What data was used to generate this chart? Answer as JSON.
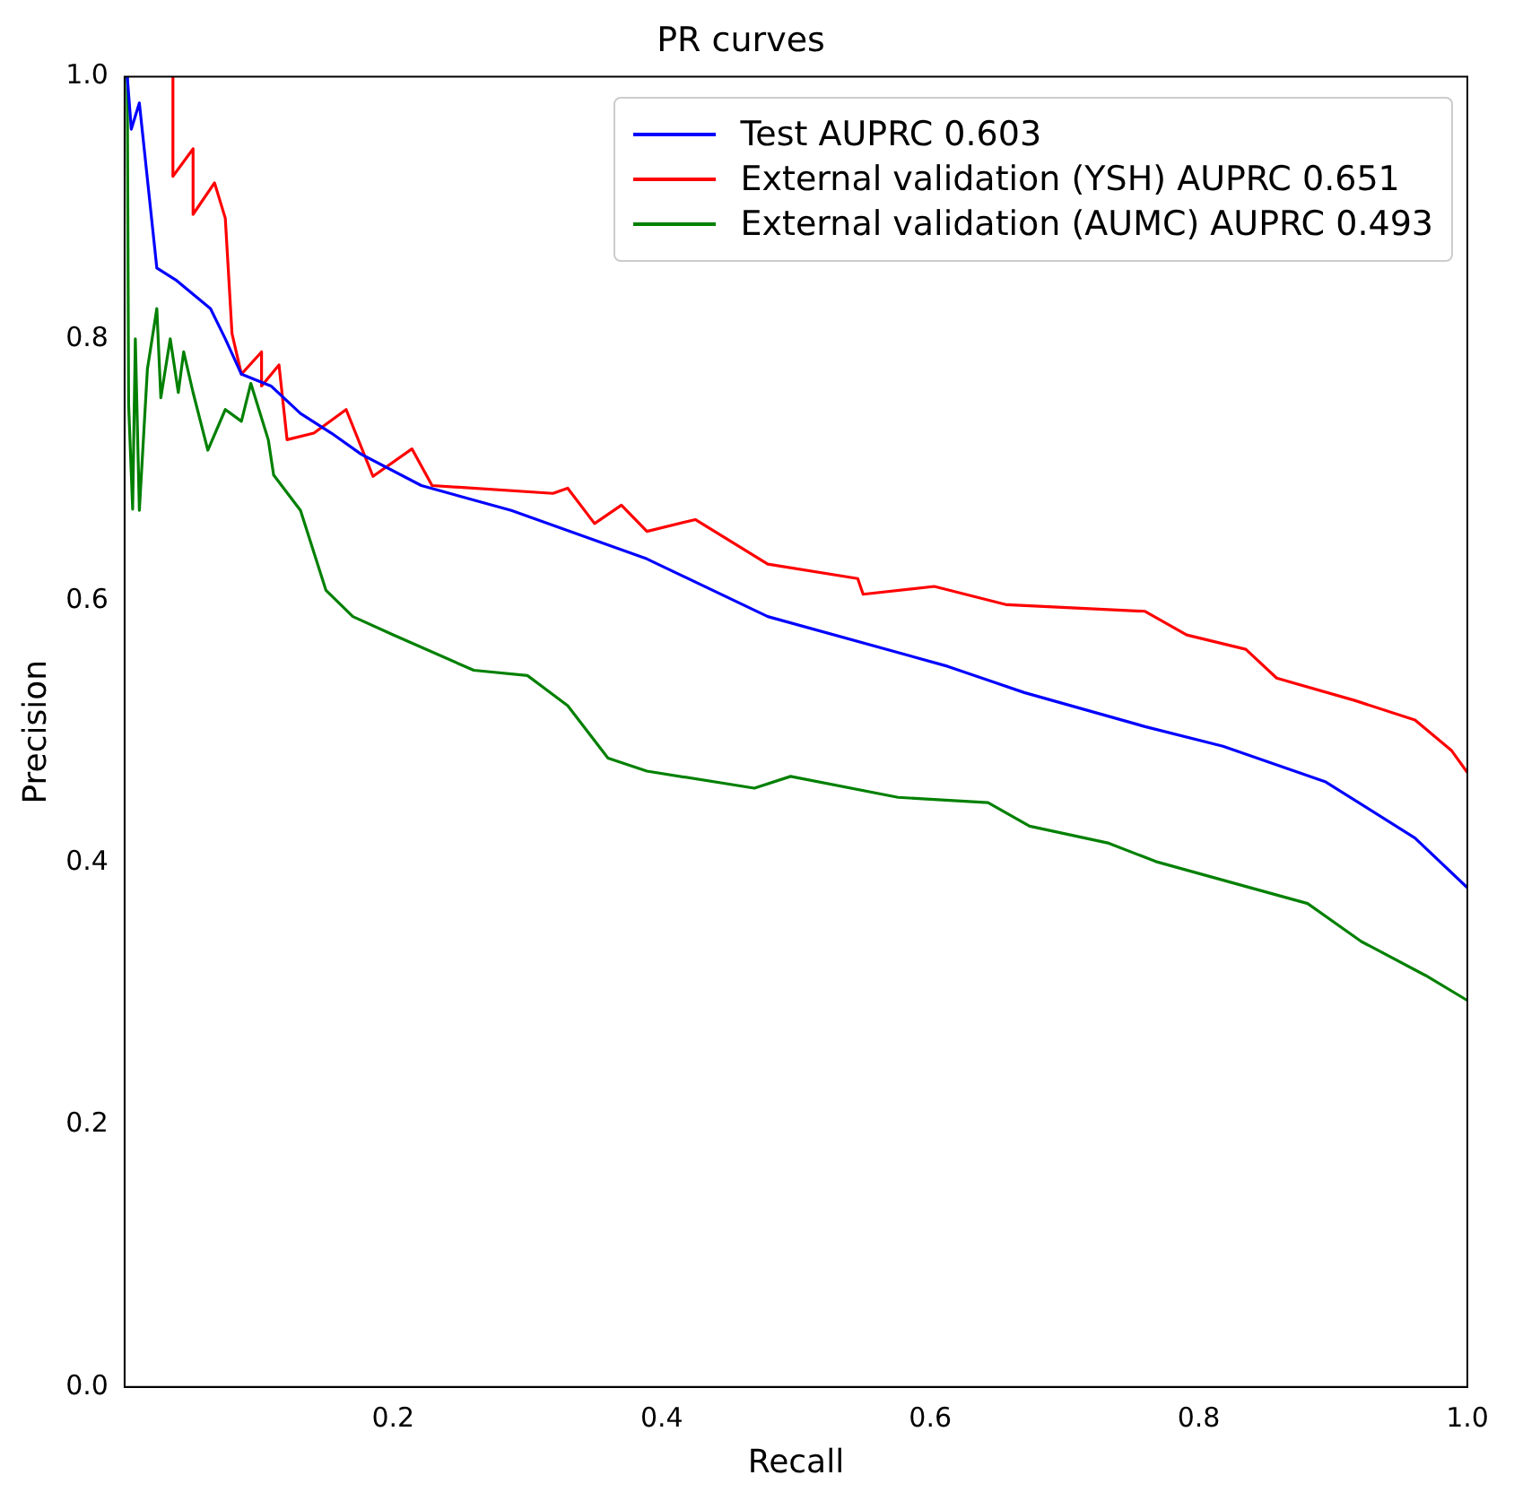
{
  "chart_data": {
    "type": "line",
    "title": "PR curves",
    "xlabel": "Recall",
    "ylabel": "Precision",
    "xlim": [
      0,
      1
    ],
    "ylim": [
      0,
      1
    ],
    "xticks": [
      0.2,
      0.4,
      0.6,
      0.8,
      {
        "value": 1,
        "label": "1.0"
      }
    ],
    "yticks": [
      {
        "value": 0,
        "label": "0.0"
      },
      0.2,
      0.4,
      0.6,
      0.8,
      {
        "value": 1,
        "label": "1.0"
      }
    ],
    "grid": false,
    "legend": "top right",
    "marker": "none",
    "line_style": "solid",
    "series": [
      {
        "name": "Test AUPRC 0.603",
        "color": "#0000ff",
        "x": [
          0.002,
          0.005,
          0.011,
          0.024,
          0.038,
          0.064,
          0.075,
          0.087,
          0.109,
          0.131,
          0.154,
          0.176,
          0.221,
          0.288,
          0.389,
          0.479,
          0.613,
          0.67,
          0.76,
          0.818,
          0.894,
          0.961,
          1.0
        ],
        "values": [
          1.0,
          0.96,
          0.98,
          0.854,
          0.845,
          0.823,
          0.8,
          0.773,
          0.764,
          0.743,
          0.728,
          0.712,
          0.688,
          0.669,
          0.632,
          0.588,
          0.55,
          0.53,
          0.504,
          0.489,
          0.462,
          0.419,
          0.381
        ]
      },
      {
        "name": "External validation (YSH) AUPRC 0.651",
        "color": "#ff0000",
        "x": [
          0.036,
          0.036,
          0.051,
          0.051,
          0.067,
          0.075,
          0.08,
          0.087,
          0.102,
          0.102,
          0.115,
          0.121,
          0.141,
          0.165,
          0.185,
          0.214,
          0.229,
          0.319,
          0.33,
          0.35,
          0.37,
          0.389,
          0.425,
          0.479,
          0.546,
          0.55,
          0.603,
          0.657,
          0.76,
          0.791,
          0.835,
          0.858,
          0.916,
          0.961,
          0.988,
          1.0
        ],
        "values": [
          1.0,
          0.924,
          0.945,
          0.895,
          0.919,
          0.892,
          0.804,
          0.773,
          0.79,
          0.764,
          0.78,
          0.723,
          0.728,
          0.746,
          0.695,
          0.716,
          0.688,
          0.682,
          0.686,
          0.659,
          0.673,
          0.653,
          0.662,
          0.628,
          0.617,
          0.605,
          0.611,
          0.597,
          0.592,
          0.574,
          0.563,
          0.541,
          0.524,
          0.509,
          0.486,
          0.469
        ]
      },
      {
        "name": "External validation (AUMC) AUPRC 0.493",
        "color": "#008000",
        "x": [
          0.002,
          0.003,
          0.006,
          0.008,
          0.011,
          0.017,
          0.024,
          0.027,
          0.034,
          0.04,
          0.044,
          0.051,
          0.062,
          0.075,
          0.087,
          0.094,
          0.107,
          0.111,
          0.131,
          0.15,
          0.17,
          0.2,
          0.26,
          0.3,
          0.33,
          0.36,
          0.389,
          0.469,
          0.496,
          0.576,
          0.643,
          0.674,
          0.733,
          0.768,
          0.835,
          0.881,
          0.921,
          0.969,
          1.0
        ],
        "values": [
          1.0,
          0.75,
          0.67,
          0.8,
          0.669,
          0.777,
          0.823,
          0.755,
          0.8,
          0.759,
          0.79,
          0.759,
          0.715,
          0.746,
          0.737,
          0.766,
          0.723,
          0.696,
          0.669,
          0.608,
          0.588,
          0.574,
          0.547,
          0.543,
          0.52,
          0.48,
          0.47,
          0.457,
          0.466,
          0.45,
          0.446,
          0.428,
          0.415,
          0.401,
          0.382,
          0.369,
          0.34,
          0.314,
          0.295
        ]
      }
    ]
  }
}
